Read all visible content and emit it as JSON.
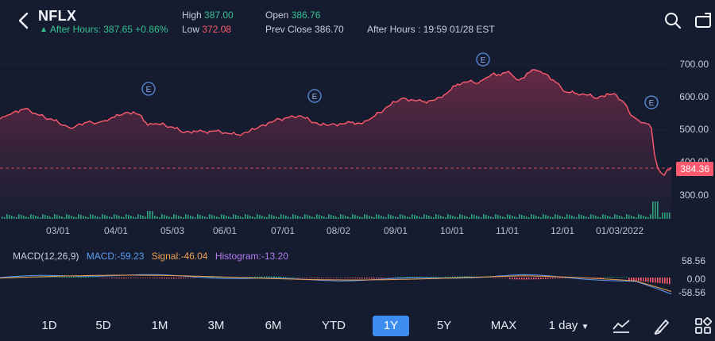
{
  "header": {
    "ticker": "NFLX",
    "after_hours_arrow": "▲",
    "after_hours": "After Hours: 387.65 +0.86%",
    "high_label": "High",
    "high_value": "387.00",
    "low_label": "Low",
    "low_value": "372.08",
    "open_label": "Open",
    "open_value": "386.76",
    "prev_close_label": "Prev Close",
    "prev_close_value": "386.70",
    "after_hours_time": "After Hours : 19:59 01/28 EST",
    "icons": [
      "back-chevron-icon",
      "search-icon",
      "rotate-screen-icon"
    ]
  },
  "chart": {
    "price_labels": [
      "700.00",
      "600.00",
      "500.00",
      "400.00",
      "300.00"
    ],
    "current_price": "384.36",
    "earnings_marker": "E",
    "date_labels": [
      "03/01",
      "04/01",
      "05/03",
      "06/01",
      "07/01",
      "08/02",
      "09/01",
      "10/01",
      "11/01",
      "12/01",
      "01/03/2022"
    ],
    "colors": {
      "line": "#ff5a6e",
      "fill_top": "#6b2a45",
      "background": "#151c30",
      "up": "#34c38f",
      "down": "#ff5a6e",
      "marker": "#5b8fe0"
    }
  },
  "macd": {
    "label": "MACD(12,26,9)",
    "macd": "MACD:-59.23",
    "signal": "Signal:-46.04",
    "histogram": "Histogram:-13.20",
    "scale_labels": [
      "58.56",
      "0.00",
      "-58.56"
    ],
    "colors": {
      "macd": "#5b9bf0",
      "signal": "#f0a050",
      "histogram": "#b47af0"
    }
  },
  "range_bar": {
    "buttons": [
      "1D",
      "5D",
      "1M",
      "3M",
      "6M",
      "YTD",
      "1Y",
      "5Y",
      "MAX"
    ],
    "active": "1Y",
    "interval": "1 day",
    "icons": [
      "chart-type-icon",
      "draw-icon",
      "grid-icon"
    ]
  }
}
